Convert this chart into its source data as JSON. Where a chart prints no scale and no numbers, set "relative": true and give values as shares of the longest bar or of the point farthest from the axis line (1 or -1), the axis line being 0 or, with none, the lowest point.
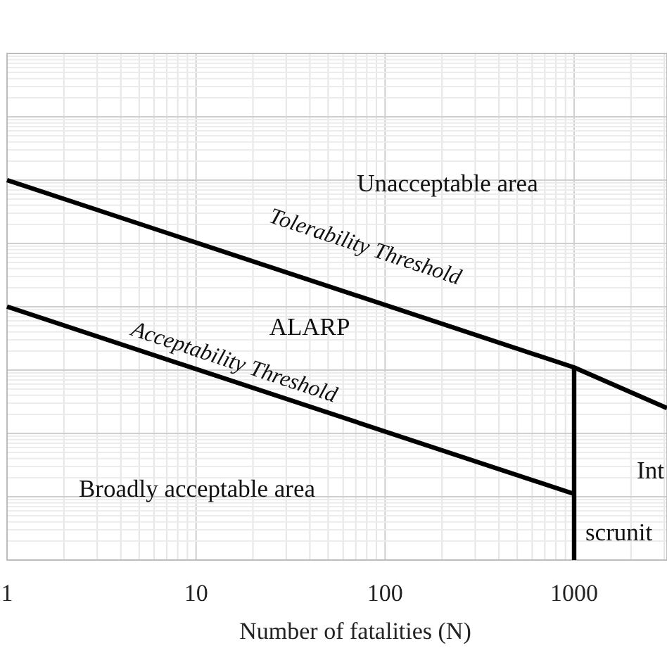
{
  "chart_data": {
    "type": "line",
    "xlabel": "Number of fatalities (N)",
    "relative": true,
    "log": "x",
    "grid": true,
    "xlim": [
      1,
      3100
    ],
    "xticks": [
      1,
      10,
      100,
      1000
    ],
    "series": [
      {
        "color": "#000000",
        "x": [
          1,
          1000,
          3100
        ],
        "values": [
          1,
          0.507,
          0.4
        ]
      },
      {
        "color": "#000000",
        "x": [
          1,
          1000
        ],
        "values": [
          0.667,
          0.174
        ]
      },
      {
        "color": "#000000",
        "x": [
          1000,
          1000
        ],
        "values": [
          0.507,
          0
        ]
      }
    ],
    "annotations": [
      "Unacceptable area",
      "Tolerability Threshold",
      "ALARP",
      "Acceptability Threshold",
      "Broadly acceptable area",
      "Int",
      "scrunit"
    ]
  }
}
